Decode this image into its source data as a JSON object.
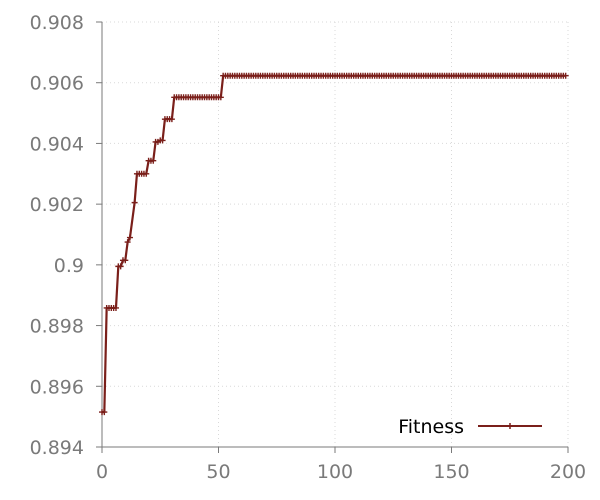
{
  "colors": {
    "series": "#7a1f1a",
    "axis": "#7a7a7a",
    "grid": "#d9d9d9",
    "background": "#ffffff"
  },
  "chart_data": {
    "type": "line",
    "title": "",
    "xlabel": "",
    "ylabel": "",
    "xlim": [
      0,
      200
    ],
    "ylim": [
      0.894,
      0.908
    ],
    "x_ticks": [
      0,
      50,
      100,
      150,
      200
    ],
    "x_tick_labels": [
      "0",
      "50",
      "100",
      "150",
      "200"
    ],
    "y_ticks": [
      0.894,
      0.896,
      0.898,
      0.9,
      0.902,
      0.904,
      0.906,
      0.908
    ],
    "y_tick_labels": [
      "0.894",
      "0.896",
      "0.898",
      "0.9",
      "0.902",
      "0.904",
      "0.906",
      "0.908"
    ],
    "grid": true,
    "legend_position": "bottom-right",
    "series": [
      {
        "name": "Fitness",
        "marker": "plus",
        "steps": [
          {
            "from": 0,
            "to": 1,
            "y": 0.89515
          },
          {
            "from": 2,
            "to": 6,
            "y": 0.89858
          },
          {
            "from": 7,
            "to": 8,
            "y": 0.89995
          },
          {
            "from": 9,
            "to": 10,
            "y": 0.90015
          },
          {
            "from": 11,
            "to": 11,
            "y": 0.90075
          },
          {
            "from": 12,
            "to": 12,
            "y": 0.9009
          },
          {
            "from": 14,
            "to": 14,
            "y": 0.90205
          },
          {
            "from": 15,
            "to": 19,
            "y": 0.903
          },
          {
            "from": 20,
            "to": 22,
            "y": 0.90343
          },
          {
            "from": 23,
            "to": 24,
            "y": 0.90405
          },
          {
            "from": 25,
            "to": 26,
            "y": 0.9041
          },
          {
            "from": 27,
            "to": 30,
            "y": 0.9048
          },
          {
            "from": 31,
            "to": 51,
            "y": 0.90552
          },
          {
            "from": 52,
            "to": 199,
            "y": 0.90623
          }
        ]
      }
    ]
  }
}
